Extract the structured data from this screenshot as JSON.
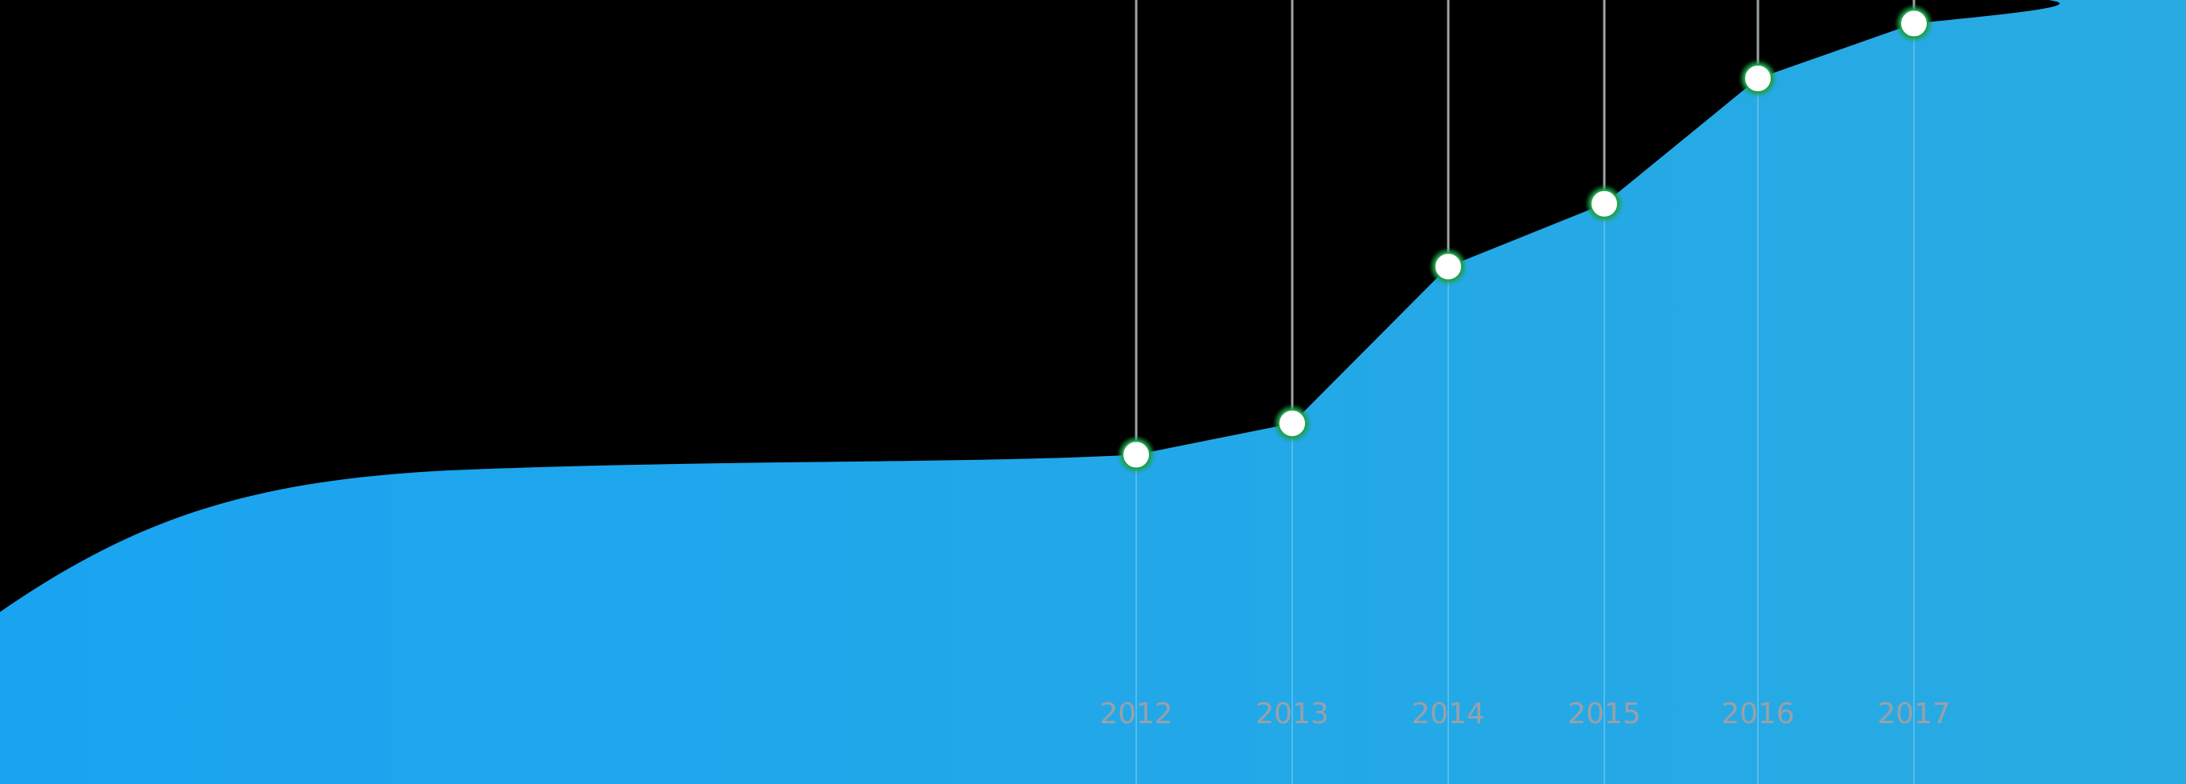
{
  "chart_data": {
    "type": "area",
    "title": "",
    "xlabel": "",
    "ylabel": "",
    "categories": [
      "2012",
      "2013",
      "2014",
      "2015",
      "2016",
      "2017"
    ],
    "series": [
      {
        "values": [
          42,
          46,
          66,
          74,
          90,
          97
        ]
      }
    ],
    "ylim": [
      0,
      100
    ],
    "grid": false,
    "legend": "none",
    "colors": {
      "area_left": "#1aa4f0",
      "area_right": "#29abe2",
      "marker_fill": "#ffffff",
      "marker_stroke": "#1fa04a",
      "guide_line": "#9ea3a6",
      "tick_label": "#9aa0a6"
    }
  }
}
